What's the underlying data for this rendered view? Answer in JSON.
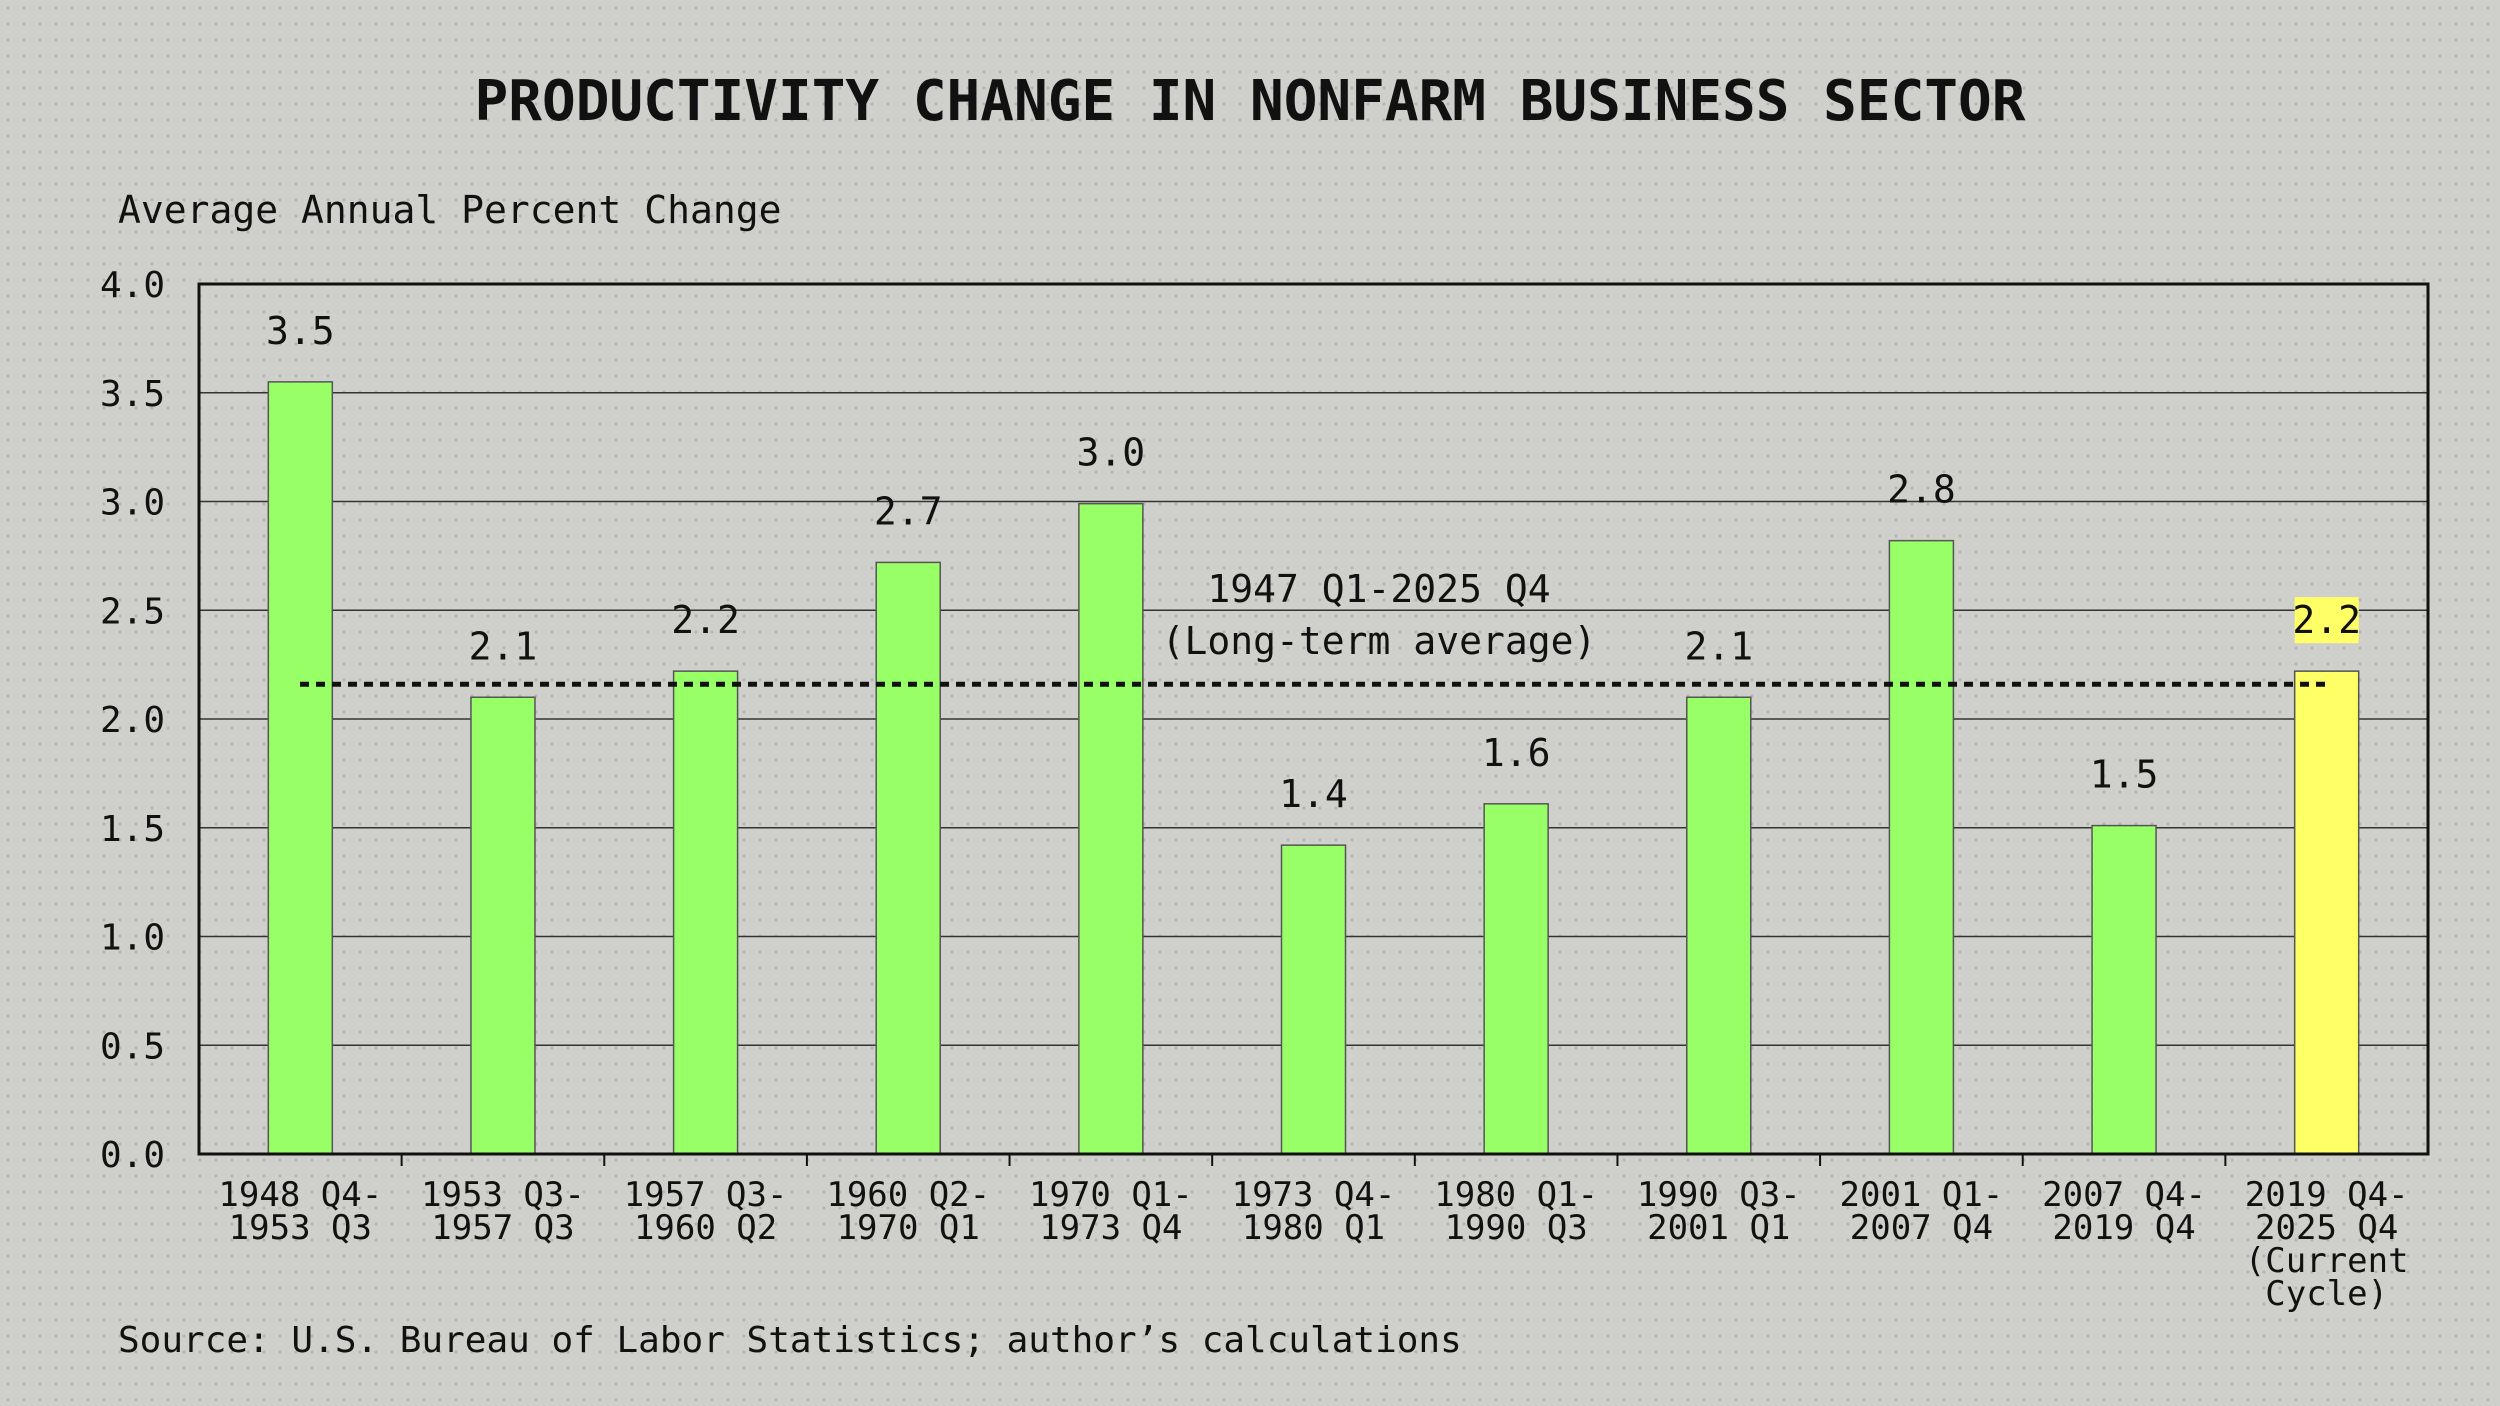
{
  "chart_data": {
    "type": "bar",
    "title": "PRODUCTIVITY CHANGE IN NONFARM BUSINESS SECTOR",
    "ylabel": "Average Annual Percent Change",
    "xlabel": "",
    "ylim": [
      0,
      4
    ],
    "yticks": [
      "0.0",
      "0.5",
      "1.0",
      "1.5",
      "2.0",
      "2.5",
      "3.0",
      "3.5",
      "4.0"
    ],
    "grid": "horizontal",
    "categories": [
      [
        "1948 Q4-",
        "1953 Q3"
      ],
      [
        "1953 Q3-",
        "1957 Q3"
      ],
      [
        "1957 Q3-",
        "1960 Q2"
      ],
      [
        "1960 Q2-",
        "1970 Q1"
      ],
      [
        "1970 Q1-",
        "1973 Q4"
      ],
      [
        "1973 Q4-",
        "1980 Q1"
      ],
      [
        "1980 Q1-",
        "1990 Q3"
      ],
      [
        "1990 Q3-",
        "2001 Q1"
      ],
      [
        "2001 Q1-",
        "2007 Q4"
      ],
      [
        "2007 Q4-",
        "2019 Q4"
      ],
      [
        "2019 Q4-",
        "2025 Q4",
        "(Current",
        "Cycle)"
      ]
    ],
    "values": [
      3.55,
      2.1,
      2.22,
      2.72,
      2.99,
      1.42,
      1.61,
      2.1,
      2.82,
      1.51,
      2.22
    ],
    "labels": [
      "3.5",
      "2.1",
      "2.2",
      "2.7",
      "3.0",
      "1.4",
      "1.6",
      "2.1",
      "2.8",
      "1.5",
      "2.2"
    ],
    "highlight_index": 10,
    "average": {
      "value": 2.16,
      "label": [
        "1947 Q1-2025 Q4",
        "(Long-term average)"
      ]
    },
    "colors": {
      "bar": "#99ff66",
      "highlight": "#ffff66",
      "background": "#cfd0cc"
    },
    "source": "Source: U.S. Bureau of Labor Statistics; author’s calculations"
  }
}
